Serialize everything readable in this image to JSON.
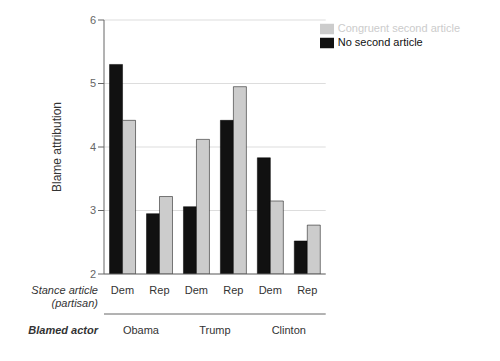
{
  "chart_data": {
    "type": "bar",
    "ylabel": "Blame attribution",
    "categories": [
      "Dem",
      "Rep",
      "Dem",
      "Rep",
      "Dem",
      "Rep"
    ],
    "category_label": "Stance article\n(partisan)",
    "groups": [
      "Obama",
      "Trump",
      "Clinton"
    ],
    "group_label": "Blamed actor",
    "series": [
      {
        "name": "No second article",
        "color": "#111111",
        "values": [
          5.3,
          2.95,
          3.06,
          4.42,
          3.83,
          2.52
        ]
      },
      {
        "name": "Congruent second article",
        "color": "#cccccc",
        "values": [
          4.42,
          3.22,
          4.12,
          4.95,
          3.15,
          2.77
        ]
      }
    ],
    "ylim": [
      2,
      6
    ],
    "yticks": [
      2,
      3,
      4,
      5,
      6
    ],
    "grid": true,
    "legend": "upper right"
  }
}
